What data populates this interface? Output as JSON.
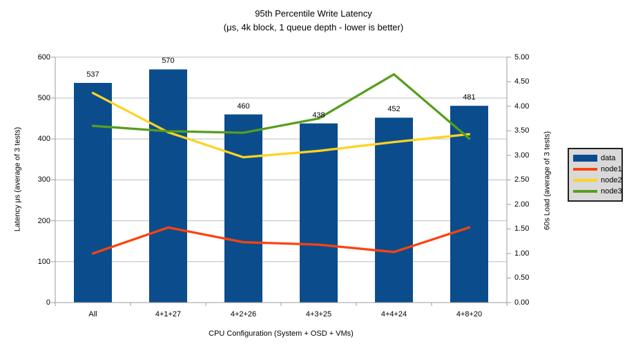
{
  "title": {
    "line1": "95th Percentile Write Latency",
    "line2": "(μs, 4k block, 1 queue depth - lower is better)"
  },
  "chart_data": {
    "type": "combo-bar-line",
    "categories": [
      "All",
      "4+1+27",
      "4+2+26",
      "4+3+25",
      "4+4+24",
      "4+8+20"
    ],
    "bar_series": {
      "name": "data",
      "axis": "left",
      "color": "#0B4D8C",
      "values": [
        537,
        570,
        460,
        438,
        452,
        481
      ]
    },
    "line_series": [
      {
        "name": "node1",
        "axis": "right",
        "color": "#FF420E",
        "values": [
          1.0,
          1.53,
          1.23,
          1.18,
          1.03,
          1.53
        ]
      },
      {
        "name": "node2",
        "axis": "right",
        "color": "#FFD320",
        "values": [
          4.27,
          3.47,
          2.96,
          3.09,
          3.27,
          3.43
        ]
      },
      {
        "name": "node3",
        "axis": "right",
        "color": "#579D1C",
        "values": [
          3.6,
          3.49,
          3.46,
          3.75,
          4.65,
          3.34
        ]
      }
    ],
    "left_axis": {
      "title": "Latency μs (average of 3 tests)",
      "min": 0,
      "max": 600,
      "step": 100,
      "ticks": [
        "600",
        "500",
        "400",
        "300",
        "200",
        "100",
        "0"
      ]
    },
    "right_axis": {
      "title": "60s Load (average of 3 tests)",
      "min": 0,
      "max": 5,
      "step": 0.5,
      "ticks": [
        "5.00",
        "4.50",
        "4.00",
        "3.50",
        "3.00",
        "2.50",
        "2.00",
        "1.50",
        "1.00",
        "0.50",
        "0.00"
      ]
    },
    "x_axis": {
      "title": "CPU Configuration (System + OSD + VMs)"
    },
    "legend": {
      "position": "right",
      "items": [
        {
          "label": "data",
          "color": "#0B4D8C",
          "marker": "bar"
        },
        {
          "label": "node1",
          "color": "#FF420E",
          "marker": "line"
        },
        {
          "label": "node2",
          "color": "#FFD320",
          "marker": "line"
        },
        {
          "label": "node3",
          "color": "#579D1C",
          "marker": "line"
        }
      ]
    },
    "grid": {
      "horizontal": true,
      "vertical": false
    }
  },
  "colors": {
    "background": "#FFFFFF",
    "text": "#000000",
    "grid_line": "#bdbdbd",
    "axis_line": "#9b9b9b",
    "legend_bg": "#D9D9D9",
    "legend_border": "#1F1F1F"
  }
}
